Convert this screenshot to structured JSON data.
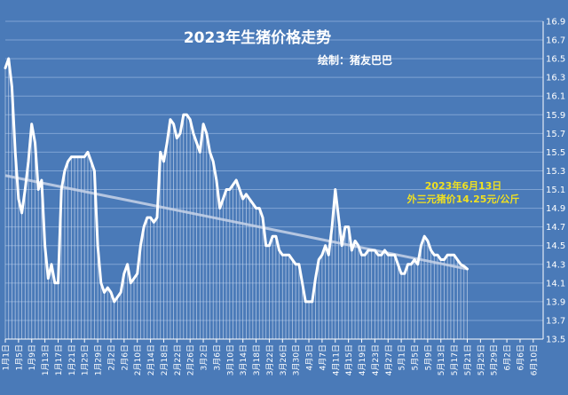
{
  "chart_data": {
    "type": "line",
    "title": "2023年生猪价格走势",
    "subtitle": "绘制：猪友巴巴",
    "annotation": {
      "line1": "2023年6月13日",
      "line2": "外三元猪价14.25元/公斤"
    },
    "ylim": [
      13.5,
      16.9
    ],
    "yticks": [
      "13.5",
      "13.7",
      "13.9",
      "14.1",
      "14.3",
      "14.5",
      "14.7",
      "14.9",
      "15.1",
      "15.3",
      "15.5",
      "15.7",
      "15.9",
      "16.1",
      "16.3",
      "16.5",
      "16.7",
      "16.9"
    ],
    "xticks": [
      "1月1日",
      "1月5日",
      "1月9日",
      "1月13日",
      "1月17日",
      "1月21日",
      "1月25日",
      "1月29日",
      "2月2日",
      "2月6日",
      "2月10日",
      "2月14日",
      "2月18日",
      "2月22日",
      "2月26日",
      "3月2日",
      "3月6日",
      "3月10日",
      "3月14日",
      "3月18日",
      "3月22日",
      "3月26日",
      "3月30日",
      "4月3日",
      "4月7日",
      "4月11日",
      "4月15日",
      "4月19日",
      "4月23日",
      "4月27日",
      "5月1日",
      "5月5日",
      "5月9日",
      "5月13日",
      "5月17日",
      "5月21日",
      "5月25日",
      "5月29日",
      "6月2日",
      "6月6日",
      "6月10日"
    ],
    "x_range": [
      0,
      163
    ],
    "trend": {
      "start": 15.25,
      "end": 14.25
    },
    "series": [
      {
        "values": [
          16.4,
          16.5,
          16.2,
          15.5,
          15.0,
          14.85,
          15.1,
          15.4,
          15.8,
          15.6,
          15.1,
          15.2,
          14.5,
          14.15,
          14.3,
          14.1,
          14.1,
          15.1,
          15.3,
          15.4,
          15.45,
          15.45,
          15.45,
          15.45,
          15.45,
          15.5,
          15.4,
          15.3,
          14.5,
          14.1,
          14.0,
          14.05,
          14.0,
          13.9,
          13.95,
          14.0,
          14.2,
          14.3,
          14.1,
          14.15,
          14.2,
          14.5,
          14.7,
          14.8,
          14.8,
          14.75,
          14.8,
          15.5,
          15.4,
          15.6,
          15.85,
          15.8,
          15.65,
          15.7,
          15.9,
          15.9,
          15.85,
          15.7,
          15.6,
          15.5,
          15.8,
          15.7,
          15.5,
          15.4,
          15.2,
          14.9,
          15.0,
          15.1,
          15.1,
          15.15,
          15.2,
          15.1,
          15.0,
          15.05,
          15.0,
          14.95,
          14.9,
          14.9,
          14.8,
          14.5,
          14.5,
          14.6,
          14.6,
          14.45,
          14.4,
          14.4,
          14.4,
          14.35,
          14.3,
          14.3,
          14.1,
          13.9,
          13.9,
          13.9,
          14.15,
          14.35,
          14.4,
          14.5,
          14.4,
          14.7,
          15.1,
          14.8,
          14.5,
          14.7,
          14.7,
          14.45,
          14.55,
          14.5,
          14.4,
          14.4,
          14.45,
          14.45,
          14.45,
          14.4,
          14.4,
          14.45,
          14.4,
          14.4,
          14.4,
          14.3,
          14.2,
          14.2,
          14.3,
          14.3,
          14.35,
          14.3,
          14.5,
          14.6,
          14.55,
          14.45,
          14.4,
          14.4,
          14.35,
          14.35,
          14.4,
          14.4,
          14.4,
          14.35,
          14.3,
          14.28,
          14.25
        ]
      }
    ]
  }
}
